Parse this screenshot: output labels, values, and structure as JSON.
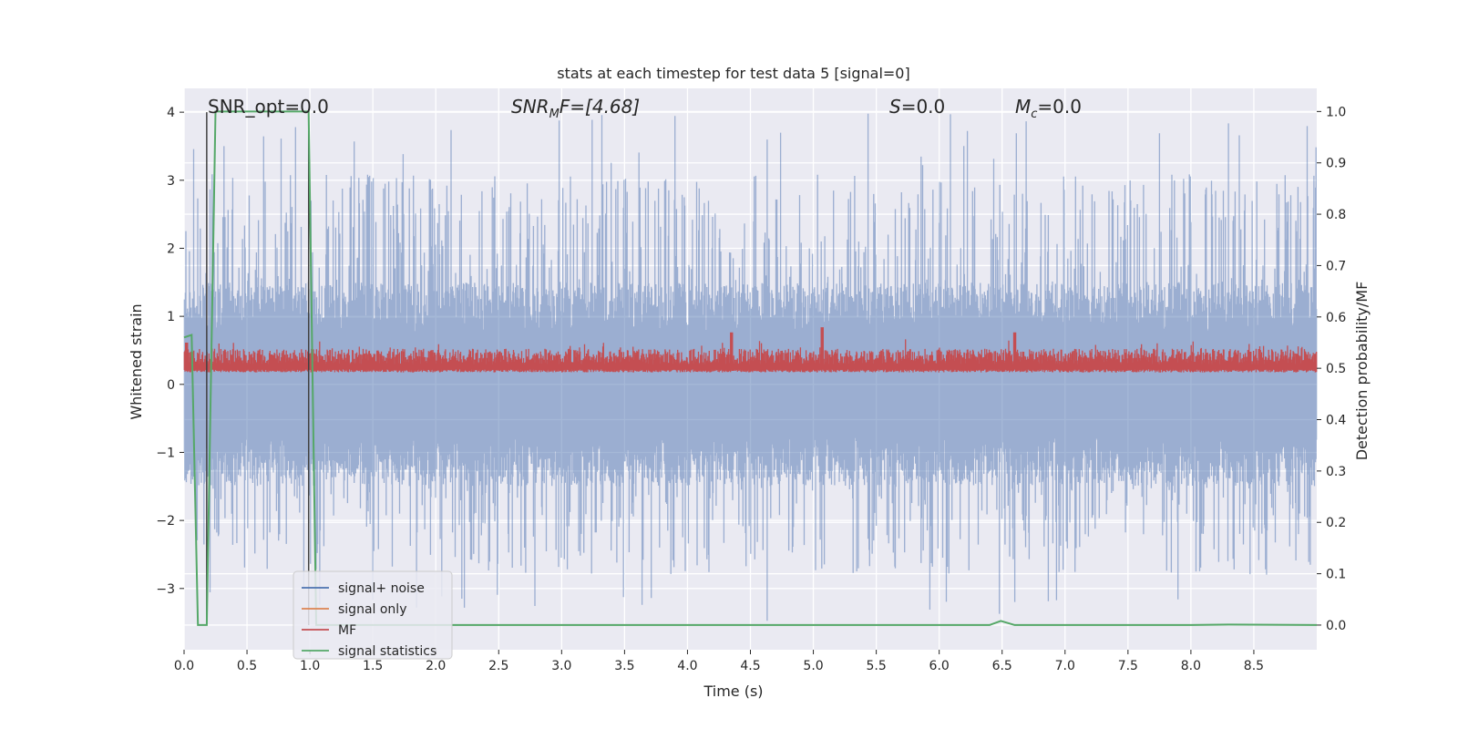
{
  "chart_data": {
    "type": "line",
    "title": "stats at each timestep for test data 5 [signal=0]",
    "xlabel": "Time (s)",
    "ylabel": "Whitened strain",
    "ylabel_right": "Detection probability/MF",
    "xlim": [
      0.0,
      9.0
    ],
    "ylim": [
      -3.9,
      4.35
    ],
    "ylim_right": [
      -0.048,
      1.045
    ],
    "x_ticks": [
      "0.0",
      "0.5",
      "1.0",
      "1.5",
      "2.0",
      "2.5",
      "3.0",
      "3.5",
      "4.0",
      "4.5",
      "5.0",
      "5.5",
      "6.0",
      "6.5",
      "7.0",
      "7.5",
      "8.0",
      "8.5"
    ],
    "y_ticks": [
      "−3",
      "−2",
      "−1",
      "0",
      "1",
      "2",
      "3",
      "4"
    ],
    "y_ticks_right": [
      "0.0",
      "0.1",
      "0.2",
      "0.3",
      "0.4",
      "0.5",
      "0.6",
      "0.7",
      "0.8",
      "0.9",
      "1.0"
    ],
    "annotations": {
      "snr_opt": "SNR_opt=0.0",
      "snr_mf_base": "SNR",
      "snr_mf_sub": "M",
      "snr_mf_rest": "F=[4.68]",
      "s_var": "S",
      "s_rest": "=0.0",
      "mc_base": "M",
      "mc_sub": "c",
      "mc_rest": "=0.0"
    },
    "vlines": [
      0.18,
      0.99
    ],
    "legend": {
      "placement": "lower-left",
      "entries": [
        {
          "label": "signal+ noise",
          "color": "#4c72b0"
        },
        {
          "label": "signal only",
          "color": "#dd8452"
        },
        {
          "label": "MF",
          "color": "#c44e52"
        },
        {
          "label": "signal statistics",
          "color": "#55a868"
        }
      ]
    },
    "series": [
      {
        "name": "signal+ noise",
        "color": "#4c72b0",
        "axis": "left",
        "noise": {
          "typical_abs": 1.3,
          "peak_max": 4.0,
          "peak_min": -3.55
        }
      },
      {
        "name": "signal only",
        "color": "#dd8452",
        "axis": "left",
        "values": []
      },
      {
        "name": "MF",
        "color": "#c44e52",
        "axis": "right",
        "band": {
          "low": 0.5,
          "typical_high": 0.53,
          "peaks": [
            [
              0.02,
              0.55
            ],
            [
              4.35,
              0.57
            ],
            [
              5.07,
              0.58
            ],
            [
              6.6,
              0.57
            ]
          ]
        }
      },
      {
        "name": "signal statistics",
        "color": "#55a868",
        "axis": "right",
        "x": [
          0.0,
          0.06,
          0.11,
          0.18,
          0.25,
          0.5,
          0.95,
          0.99,
          1.05,
          1.1,
          2.0,
          4.0,
          6.0,
          6.4,
          6.49,
          6.6,
          7.0,
          8.0,
          8.3,
          9.0
        ],
        "y": [
          0.56,
          0.565,
          0.0,
          0.0,
          1.0,
          1.0,
          1.0,
          1.0,
          0.0,
          0.0,
          0.0,
          0.0,
          0.0,
          0.0,
          0.008,
          0.0,
          0.0,
          0.0,
          0.001,
          0.0
        ]
      }
    ]
  }
}
